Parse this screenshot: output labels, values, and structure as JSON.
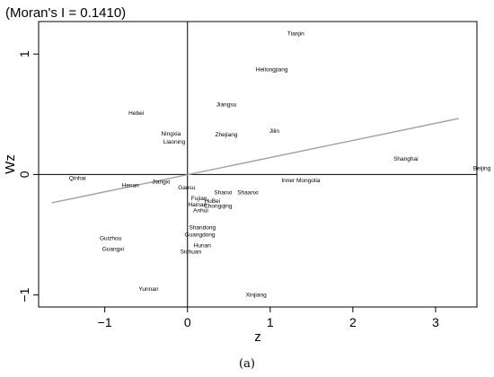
{
  "chart_data": {
    "type": "scatter",
    "title": "(Moran's I = 0.1410)",
    "xlabel": "z",
    "ylabel": "Wz",
    "xlim": [
      -1.8,
      3.5
    ],
    "ylim": [
      -1.1,
      1.27
    ],
    "xticks": [
      -1,
      0,
      1,
      2,
      3
    ],
    "yticks": [
      -1,
      0,
      1
    ],
    "grid": false,
    "points": [
      {
        "name": "Tianjin",
        "x": 1.31,
        "y": 1.17
      },
      {
        "name": "Heilongjiang",
        "x": 1.02,
        "y": 0.87
      },
      {
        "name": "Jiangsu",
        "x": 0.47,
        "y": 0.58
      },
      {
        "name": "Hebei",
        "x": -0.62,
        "y": 0.51
      },
      {
        "name": "Ningxia",
        "x": -0.2,
        "y": 0.34
      },
      {
        "name": "Zhejiang",
        "x": 0.47,
        "y": 0.33
      },
      {
        "name": "Jilin",
        "x": 1.05,
        "y": 0.36
      },
      {
        "name": "Liaoning",
        "x": -0.16,
        "y": 0.27
      },
      {
        "name": "Shanghai",
        "x": 2.64,
        "y": 0.13
      },
      {
        "name": "Beijing",
        "x": 3.56,
        "y": 0.05
      },
      {
        "name": "Qinhai",
        "x": -1.33,
        "y": -0.03
      },
      {
        "name": "Inner Mongolia",
        "x": 1.37,
        "y": -0.05
      },
      {
        "name": "Jiangxi",
        "x": -0.32,
        "y": -0.06
      },
      {
        "name": "Henan",
        "x": -0.69,
        "y": -0.09
      },
      {
        "name": "Gansu",
        "x": -0.01,
        "y": -0.11
      },
      {
        "name": "Shanxi",
        "x": 0.43,
        "y": -0.15
      },
      {
        "name": "Shaanxi",
        "x": 0.73,
        "y": -0.15
      },
      {
        "name": "Fujian",
        "x": 0.14,
        "y": -0.2
      },
      {
        "name": "HuBei",
        "x": 0.3,
        "y": -0.22
      },
      {
        "name": "Hainan",
        "x": 0.12,
        "y": -0.25
      },
      {
        "name": "Chongqing",
        "x": 0.37,
        "y": -0.26
      },
      {
        "name": "Anhui",
        "x": 0.16,
        "y": -0.3
      },
      {
        "name": "Shandong",
        "x": 0.18,
        "y": -0.44
      },
      {
        "name": "Guangdong",
        "x": 0.15,
        "y": -0.5
      },
      {
        "name": "Guizhou",
        "x": -0.93,
        "y": -0.53
      },
      {
        "name": "Hunan",
        "x": 0.18,
        "y": -0.59
      },
      {
        "name": "Guangxi",
        "x": -0.9,
        "y": -0.62
      },
      {
        "name": "Sichuan",
        "x": 0.04,
        "y": -0.64
      },
      {
        "name": "Yunnan",
        "x": -0.47,
        "y": -0.95
      },
      {
        "name": "Xinjiang",
        "x": 0.83,
        "y": -1.0
      }
    ],
    "regression_line": {
      "x": [
        -1.64,
        3.28
      ],
      "y": [
        -0.235,
        0.465
      ],
      "color": "#a0a0a0"
    }
  },
  "caption": "(a)"
}
